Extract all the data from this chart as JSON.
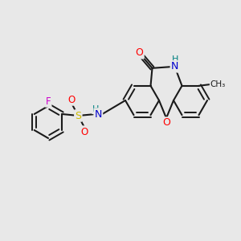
{
  "bg_color": "#e8e8e8",
  "bond_color": "#1a1a1a",
  "atom_colors": {
    "O": "#ff0000",
    "N": "#0000cc",
    "S": "#ccbb00",
    "F": "#cc00cc",
    "H": "#008080",
    "C": "#1a1a1a"
  },
  "figsize": [
    3.0,
    3.0
  ],
  "dpi": 100
}
